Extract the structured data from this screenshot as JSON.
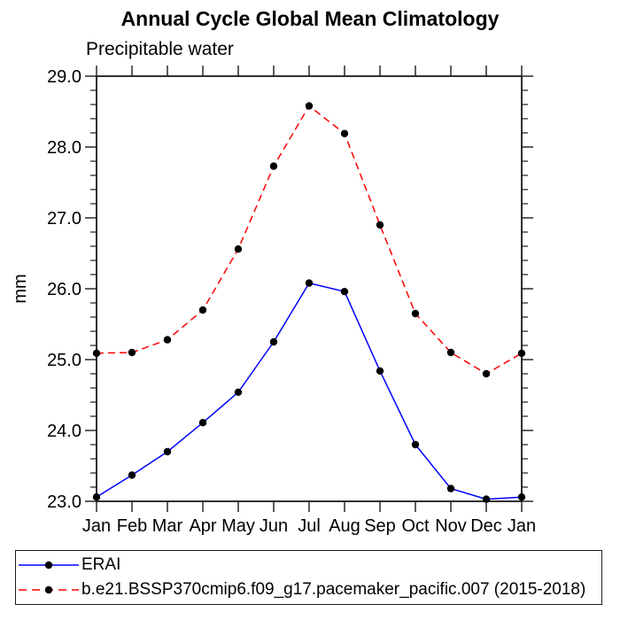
{
  "chart_data": {
    "type": "line",
    "title": "Annual Cycle Global Mean Climatology",
    "subtitle": "Precipitable water",
    "ylabel": "mm",
    "xlabel": "",
    "ylim": [
      23.0,
      29.0
    ],
    "ytick_major_step": 1.0,
    "ytick_minor_step": 0.2,
    "ytick_labels": [
      "23.0",
      "24.0",
      "25.0",
      "26.0",
      "27.0",
      "28.0",
      "29.0"
    ],
    "categories": [
      "Jan",
      "Feb",
      "Mar",
      "Apr",
      "May",
      "Jun",
      "Jul",
      "Aug",
      "Sep",
      "Oct",
      "Nov",
      "Dec",
      "Jan"
    ],
    "grid": false,
    "legend_position": "bottom-box",
    "marker": "filled-circle",
    "marker_color": "#000000",
    "series": [
      {
        "name": "ERAI",
        "color": "#0000ff",
        "style": "solid",
        "values": [
          23.06,
          23.37,
          23.7,
          24.11,
          24.54,
          25.25,
          26.08,
          25.96,
          24.84,
          23.8,
          23.18,
          23.03,
          23.06
        ]
      },
      {
        "name": "b.e21.BSSP370cmip6.f09_g17.pacemaker_pacific.007 (2015-2018)",
        "color": "#ff0000",
        "style": "dashed",
        "values": [
          25.09,
          25.1,
          25.28,
          25.7,
          26.56,
          27.73,
          28.58,
          28.19,
          26.9,
          25.65,
          25.1,
          24.8,
          25.09
        ]
      }
    ]
  }
}
